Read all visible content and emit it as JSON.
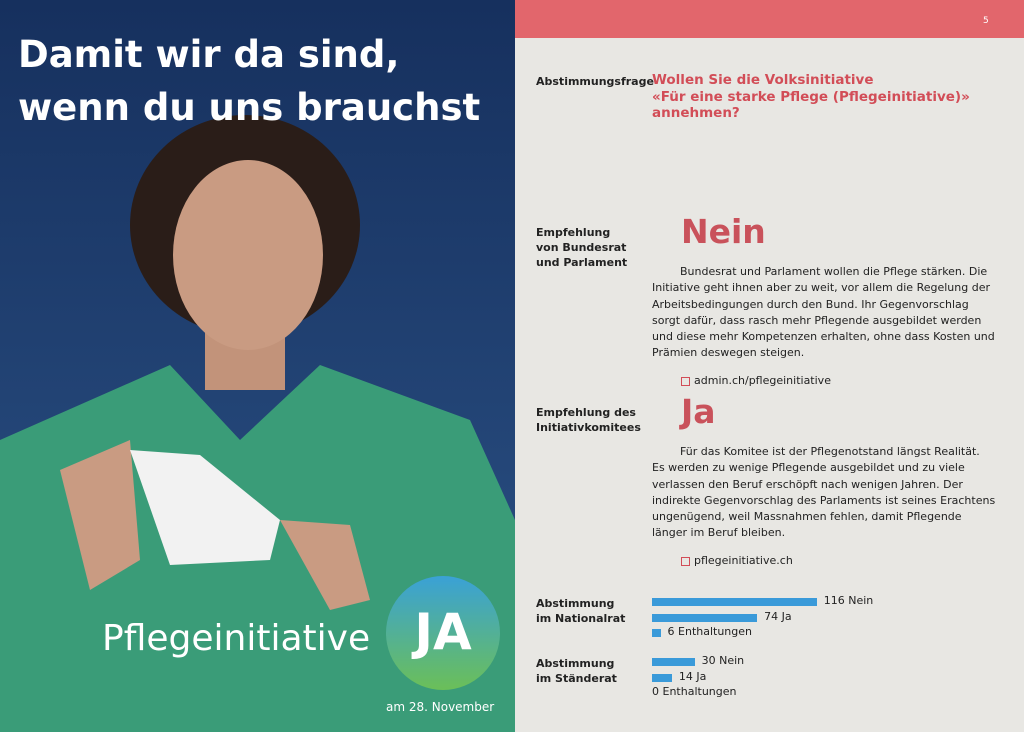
{
  "poster": {
    "headline": [
      "Damit wir da sind,",
      "wenn du uns brauchst"
    ],
    "campaign": "Pflegeinitiative",
    "badge": "JA",
    "date": "am 28. November"
  },
  "page": {
    "number": "5",
    "question": {
      "label": "Abstimmungsfrage",
      "text": [
        "Wollen Sie die Volksinitiative",
        "«Für eine starke Pflege (Pflegeinitiative)»",
        "annehmen?"
      ]
    },
    "recommendations": [
      {
        "label": [
          "Empfehlung",
          "von Bundesrat",
          "und Parlament"
        ],
        "verdict": "Nein",
        "text": [
          "Bundesrat und Parlament wollen die Pflege stärken. Die",
          "Initiative geht ihnen aber zu weit, vor allem die Regelung der",
          "Arbeitsbedingungen durch den Bund. Ihr Gegenvorschlag",
          "sorgt dafür, dass rasch mehr Pflegende ausgebildet werden",
          "und diese mehr Kompetenzen erhalten, ohne dass Kosten und",
          "Prämien deswegen steigen."
        ],
        "link": "admin.ch/pflegeinitiative"
      },
      {
        "label": [
          "Empfehlung des",
          "Initiativkomitees"
        ],
        "verdict": "Ja",
        "text": [
          "Für das Komitee ist der Pflegenotstand längst Realität.",
          "Es werden zu wenige Pflegende ausgebildet und zu viele",
          "verlassen den Beruf erschöpft nach wenigen Jahren. Der",
          "indirekte Gegenvorschlag des Parlaments ist seines Erachtens",
          "ungenügend, weil Massnahmen fehlen, damit Pflegende",
          "länger im Beruf bleiben."
        ],
        "link": "pflegeinitiative.ch"
      }
    ],
    "votes": [
      {
        "label": [
          "Abstimmung",
          "im Nationalrat"
        ],
        "results": [
          {
            "value": 116,
            "label": "Nein"
          },
          {
            "value": 74,
            "label": "Ja"
          },
          {
            "value": 6,
            "label": "Enthaltungen"
          }
        ]
      },
      {
        "label": [
          "Abstimmung",
          "im Ständerat"
        ],
        "results": [
          {
            "value": 30,
            "label": "Nein"
          },
          {
            "value": 14,
            "label": "Ja"
          },
          {
            "value": 0,
            "label": "Enthaltungen"
          }
        ]
      }
    ]
  }
}
